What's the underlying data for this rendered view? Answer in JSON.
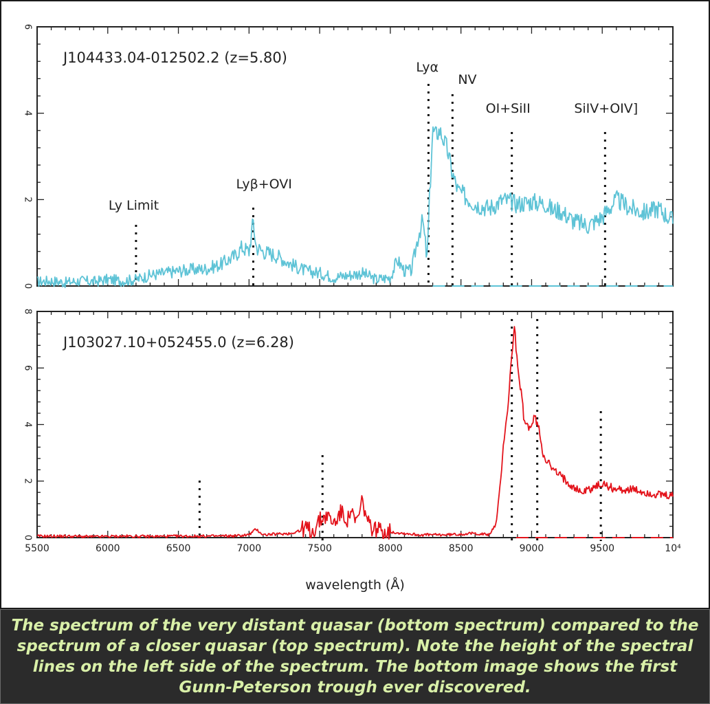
{
  "caption": "The spectrum of the very distant quasar  (bottom spectrum) compared to the spectrum of a closer quasar (top spectrum). Note the height of the spectral lines on the left side of the spectrum. The bottom image shows the first Gunn-Peterson trough ever discovered.",
  "colors": {
    "top_spectrum": "#5ec3d6",
    "bottom_spectrum": "#e3131b",
    "caption_text": "#d9f0a8",
    "caption_bg": "#2b2b2b"
  },
  "chart_data": [
    {
      "type": "line",
      "title": "J104433.04-012502.2 (z=5.80)",
      "xlim": [
        5500,
        10000
      ],
      "ylim": [
        0,
        6
      ],
      "y_ticks": [
        0,
        2,
        4,
        6
      ],
      "y_tick_labels": [
        "0",
        "2",
        "4",
        "6"
      ],
      "zero_line": true,
      "line_markers": [
        {
          "label": "Ly Limit",
          "x": 6200
        },
        {
          "label": "Lyβ+OVI",
          "x": 7030
        },
        {
          "label": "Lyα",
          "x": 8270
        },
        {
          "label": "NV",
          "x": 8440
        },
        {
          "label": "OI+SiII",
          "x": 8860
        },
        {
          "label": "SiIV+OIV]",
          "x": 9520
        }
      ],
      "series": [
        {
          "color": "#5ec3d6",
          "x": [
            5500,
            5600,
            5700,
            5800,
            5900,
            6000,
            6100,
            6200,
            6300,
            6400,
            6500,
            6600,
            6700,
            6800,
            6900,
            6950,
            7000,
            7030,
            7050,
            7100,
            7200,
            7300,
            7400,
            7500,
            7600,
            7700,
            7800,
            7900,
            8000,
            8050,
            8100,
            8150,
            8200,
            8230,
            8260,
            8280,
            8300,
            8320,
            8350,
            8400,
            8440,
            8480,
            8520,
            8600,
            8700,
            8800,
            8900,
            9000,
            9100,
            9150,
            9200,
            9300,
            9400,
            9500,
            9600,
            9700,
            9800,
            9900,
            10000
          ],
          "y": [
            0.1,
            0.12,
            0.08,
            0.12,
            0.1,
            0.15,
            0.12,
            0.15,
            0.25,
            0.3,
            0.35,
            0.38,
            0.4,
            0.5,
            0.7,
            0.9,
            0.8,
            1.5,
            0.9,
            0.8,
            0.7,
            0.5,
            0.35,
            0.3,
            0.2,
            0.25,
            0.3,
            0.15,
            0.2,
            0.6,
            0.35,
            0.35,
            1.2,
            1.5,
            0.6,
            2.2,
            3.6,
            3.5,
            3.6,
            3.2,
            2.6,
            2.2,
            2.1,
            1.9,
            1.8,
            2.0,
            1.9,
            1.95,
            1.9,
            1.75,
            1.75,
            1.5,
            1.4,
            1.6,
            2.0,
            1.8,
            1.7,
            1.8,
            1.5
          ]
        }
      ]
    },
    {
      "type": "line",
      "title": "J103027.10+052455.0 (z=6.28)",
      "xlabel": "wavelength (Å)",
      "xlim": [
        5500,
        10000
      ],
      "ylim": [
        0,
        8
      ],
      "x_ticks": [
        5500,
        6000,
        6500,
        7000,
        7500,
        8000,
        8500,
        9000,
        9500,
        10000
      ],
      "x_tick_labels": [
        "5500",
        "6000",
        "6500",
        "7000",
        "7500",
        "8000",
        "8500",
        "9000",
        "9500",
        "10⁴"
      ],
      "y_ticks": [
        0,
        2,
        4,
        6,
        8
      ],
      "y_tick_labels": [
        "0",
        "2",
        "4",
        "6",
        "8"
      ],
      "zero_line": true,
      "line_markers": [
        {
          "x": 6650
        },
        {
          "x": 7520
        },
        {
          "x": 8860
        },
        {
          "x": 9040
        },
        {
          "x": 9490
        }
      ],
      "series": [
        {
          "color": "#e3131b",
          "x": [
            5500,
            5700,
            5900,
            6100,
            6300,
            6500,
            6700,
            6900,
            7000,
            7050,
            7100,
            7300,
            7400,
            7450,
            7500,
            7550,
            7600,
            7650,
            7700,
            7720,
            7750,
            7780,
            7800,
            7850,
            7900,
            8000,
            8200,
            8400,
            8600,
            8700,
            8750,
            8780,
            8800,
            8830,
            8850,
            8860,
            8880,
            8900,
            8930,
            8950,
            9000,
            9020,
            9050,
            9080,
            9100,
            9150,
            9200,
            9300,
            9350,
            9400,
            9450,
            9500,
            9550,
            9600,
            9700,
            9800,
            9900,
            10000
          ],
          "y": [
            0.05,
            0.05,
            0.03,
            0.05,
            0.04,
            0.05,
            0.05,
            0.06,
            0.1,
            0.3,
            0.1,
            0.15,
            0.35,
            0.2,
            0.6,
            0.8,
            0.5,
            0.9,
            0.6,
            1.0,
            0.5,
            0.8,
            1.3,
            0.4,
            0.3,
            0.2,
            0.1,
            0.1,
            0.15,
            0.1,
            0.5,
            2.0,
            3.3,
            4.5,
            5.8,
            6.5,
            7.5,
            6.0,
            5.0,
            4.0,
            3.9,
            4.3,
            3.9,
            3.0,
            2.8,
            2.4,
            2.2,
            1.8,
            1.6,
            1.7,
            1.8,
            1.9,
            1.8,
            1.7,
            1.7,
            1.6,
            1.5,
            1.45
          ]
        }
      ]
    }
  ]
}
